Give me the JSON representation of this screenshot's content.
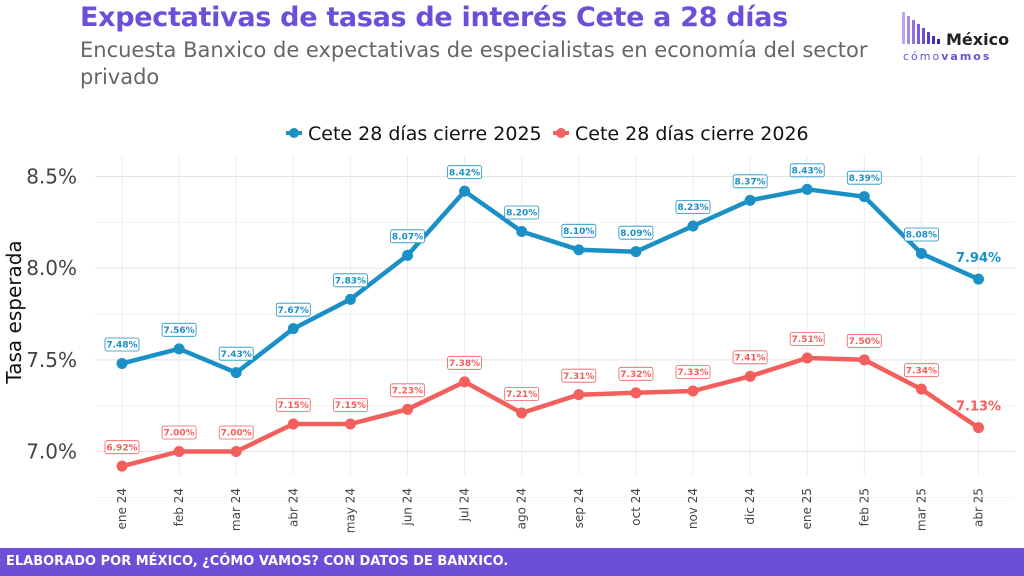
{
  "header": {
    "title": "Expectativas de tasas de interés Cete a 28 días",
    "subtitle": "Encuesta Banxico de expectativas de especialistas en economía del sector privado"
  },
  "logo": {
    "word1": "México",
    "word2a": "cómo",
    "word2b": "vamos"
  },
  "footer": {
    "text": "ELABORADO POR MÉXICO, ¿CÓMO VAMOS? CON DATOS DE BANXICO."
  },
  "colors": {
    "accent": "#6b4fd6",
    "series1": "#1a90c4",
    "series2": "#f25f5c"
  },
  "chart_data": {
    "type": "line",
    "title": "Expectativas de tasas de interés Cete a 28 días",
    "ylabel": "Tasa esperada",
    "xlabel": "",
    "ylim": [
      6.9,
      8.6
    ],
    "yticks": [
      7.0,
      7.5,
      8.0,
      8.5
    ],
    "ytick_labels": [
      "7.0%",
      "7.5%",
      "8.0%",
      "8.5%"
    ],
    "grid": true,
    "legend_position": "top",
    "categories": [
      "ene 24",
      "feb 24",
      "mar 24",
      "abr 24",
      "may 24",
      "jun 24",
      "jul 24",
      "ago 24",
      "sep 24",
      "oct 24",
      "nov 24",
      "dic 24",
      "ene 25",
      "feb 25",
      "mar 25",
      "abr 25"
    ],
    "series": [
      {
        "name": "Cete 28 días cierre 2025",
        "color": "#1a90c4",
        "values": [
          7.48,
          7.56,
          7.43,
          7.67,
          7.83,
          8.07,
          8.42,
          8.2,
          8.1,
          8.09,
          8.23,
          8.37,
          8.43,
          8.39,
          8.08,
          7.94
        ],
        "labels": [
          "7.48%",
          "7.56%",
          "7.43%",
          "7.67%",
          "7.83%",
          "8.07%",
          "8.42%",
          "8.20%",
          "8.10%",
          "8.09%",
          "8.23%",
          "8.37%",
          "8.43%",
          "8.39%",
          "8.08%",
          "7.94%"
        ]
      },
      {
        "name": "Cete 28 días cierre 2026",
        "color": "#f25f5c",
        "values": [
          6.92,
          7.0,
          7.0,
          7.15,
          7.15,
          7.23,
          7.38,
          7.21,
          7.31,
          7.32,
          7.33,
          7.41,
          7.51,
          7.5,
          7.34,
          7.13
        ],
        "labels": [
          "6.92%",
          "7.00%",
          "7.00%",
          "7.15%",
          "7.15%",
          "7.23%",
          "7.38%",
          "7.21%",
          "7.31%",
          "7.32%",
          "7.33%",
          "7.41%",
          "7.51%",
          "7.50%",
          "7.34%",
          "7.13%"
        ]
      }
    ]
  }
}
